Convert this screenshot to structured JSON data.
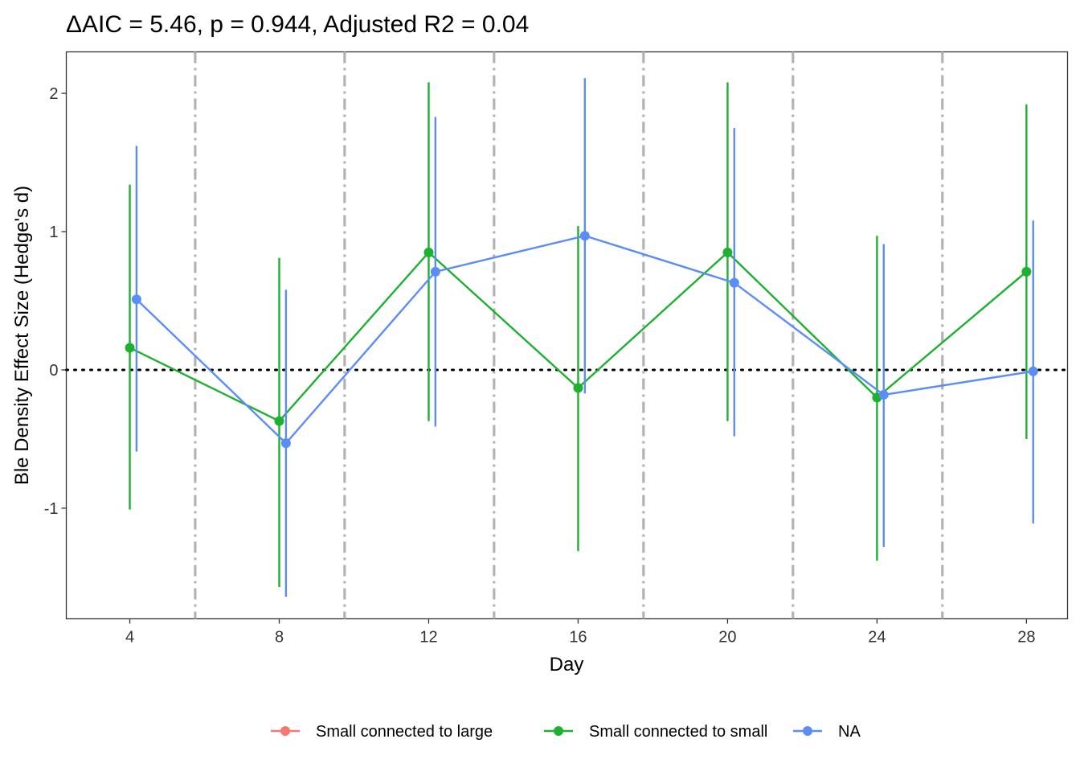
{
  "chart_data": {
    "type": "line",
    "title": "ΔAIC = 5.46, p = 0.944, Adjusted R2 = 0.04",
    "xlabel": "Day",
    "ylabel": "Ble Density Effect Size (Hedge's d)",
    "xlim": [
      2.3,
      29.1
    ],
    "ylim": [
      -1.8,
      2.3
    ],
    "x_ticks": [
      "4",
      "8",
      "12",
      "16",
      "20",
      "24",
      "28"
    ],
    "y_ticks": [
      "-1",
      "0",
      "1",
      "2"
    ],
    "reference_line_y": 0,
    "vertical_lines_x": [
      5.75,
      9.75,
      13.75,
      17.75,
      21.75,
      25.75
    ],
    "grid": false,
    "legend_position": "bottom",
    "series": [
      {
        "name": "Small connected to large",
        "color": "#F8766D",
        "points": []
      },
      {
        "name": "Small connected to small",
        "color": "#1EB030",
        "points": [
          {
            "x": 4,
            "y": 0.16,
            "low": -1.01,
            "high": 1.34
          },
          {
            "x": 8,
            "y": -0.37,
            "low": -1.57,
            "high": 0.81
          },
          {
            "x": 12,
            "y": 0.85,
            "low": -0.37,
            "high": 2.08
          },
          {
            "x": 16,
            "y": -0.13,
            "low": -1.31,
            "high": 1.04
          },
          {
            "x": 20,
            "y": 0.85,
            "low": -0.37,
            "high": 2.08
          },
          {
            "x": 24,
            "y": -0.2,
            "low": -1.38,
            "high": 0.97
          },
          {
            "x": 28,
            "y": 0.71,
            "low": -0.5,
            "high": 1.92
          }
        ]
      },
      {
        "name": "NA",
        "color": "#5C8DF6",
        "points": [
          {
            "x": 4.18,
            "y": 0.51,
            "low": -0.59,
            "high": 1.62
          },
          {
            "x": 8.18,
            "y": -0.53,
            "low": -1.64,
            "high": 0.58
          },
          {
            "x": 12.18,
            "y": 0.71,
            "low": -0.41,
            "high": 1.83
          },
          {
            "x": 16.18,
            "y": 0.97,
            "low": -0.17,
            "high": 2.11
          },
          {
            "x": 20.18,
            "y": 0.63,
            "low": -0.48,
            "high": 1.75
          },
          {
            "x": 24.18,
            "y": -0.18,
            "low": -1.28,
            "high": 0.91
          },
          {
            "x": 28.18,
            "y": -0.01,
            "low": -1.11,
            "high": 1.08
          }
        ]
      }
    ]
  }
}
